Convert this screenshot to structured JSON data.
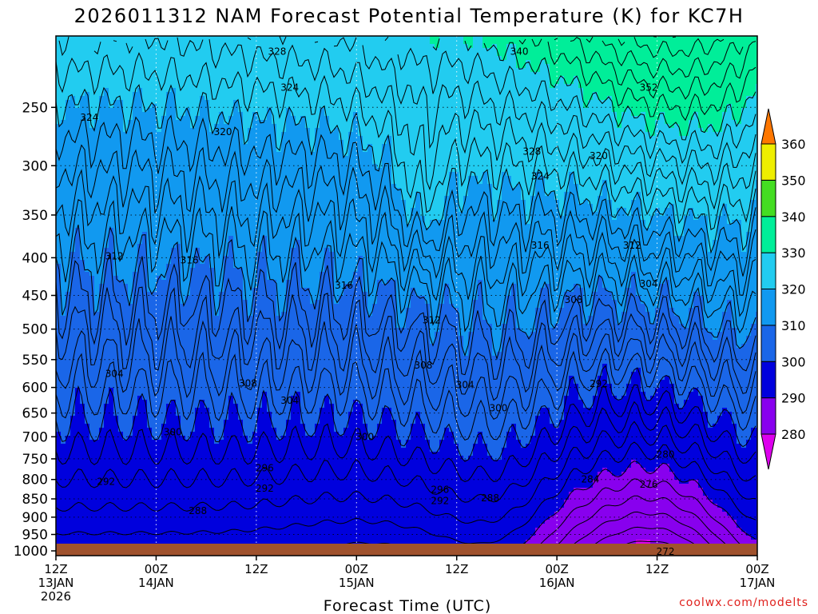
{
  "chart_data": {
    "type": "time-height filled contour",
    "title": "2026011312 NAM Forecast Potential Temperature (K) for KC7H",
    "xlabel": "Forecast Time (UTC)",
    "credit": "coolwx.com/modelts",
    "y_ticks": [
      "250",
      "300",
      "350",
      "400",
      "450",
      "500",
      "550",
      "600",
      "650",
      "700",
      "750",
      "800",
      "850",
      "900",
      "950",
      "1000"
    ],
    "y_values": [
      250,
      300,
      350,
      400,
      450,
      500,
      550,
      600,
      650,
      700,
      750,
      800,
      850,
      900,
      950,
      1000
    ],
    "y_range": [
      200,
      1015
    ],
    "x_ticks": [
      {
        "hour": 0,
        "l1": "12Z",
        "l2": "13JAN",
        "l3": "2026"
      },
      {
        "hour": 12,
        "l1": "00Z",
        "l2": "14JAN",
        "l3": ""
      },
      {
        "hour": 24,
        "l1": "12Z",
        "l2": "",
        "l3": ""
      },
      {
        "hour": 36,
        "l1": "00Z",
        "l2": "15JAN",
        "l3": ""
      },
      {
        "hour": 48,
        "l1": "12Z",
        "l2": "",
        "l3": ""
      },
      {
        "hour": 60,
        "l1": "00Z",
        "l2": "16JAN",
        "l3": ""
      },
      {
        "hour": 72,
        "l1": "12Z",
        "l2": "",
        "l3": ""
      },
      {
        "hour": 84,
        "l1": "00Z",
        "l2": "17JAN",
        "l3": ""
      }
    ],
    "x_range": [
      0,
      84
    ],
    "colorbar": {
      "levels": [
        280,
        290,
        300,
        310,
        320,
        330,
        340,
        350,
        360
      ],
      "labels": [
        "280",
        "290",
        "300",
        "310",
        "320",
        "330",
        "340",
        "350",
        "360"
      ],
      "colors": {
        "lt280": "#dd00ee",
        "280": "#8800ee",
        "290": "#0000dd",
        "300": "#1a66e8",
        "310": "#1199f0",
        "320": "#22ccf0",
        "330": "#00ee99",
        "340": "#44dd22",
        "350": "#eeee00",
        "360": "#ffaa00",
        "gt360": "#ff7700"
      }
    },
    "ground_color": "#a0522d",
    "contour_interval": 2,
    "contour_labels": [
      {
        "text": "328",
        "h": 26.5,
        "p": 210
      },
      {
        "text": "340",
        "h": 55.5,
        "p": 210
      },
      {
        "text": "324",
        "h": 28,
        "p": 235
      },
      {
        "text": "352",
        "h": 71,
        "p": 235
      },
      {
        "text": "324",
        "h": 4,
        "p": 258
      },
      {
        "text": "320",
        "h": 20,
        "p": 270
      },
      {
        "text": "328",
        "h": 57,
        "p": 287
      },
      {
        "text": "320",
        "h": 65,
        "p": 291
      },
      {
        "text": "324",
        "h": 58,
        "p": 310
      },
      {
        "text": "316",
        "h": 58,
        "p": 385
      },
      {
        "text": "312",
        "h": 69,
        "p": 385
      },
      {
        "text": "312",
        "h": 7,
        "p": 398
      },
      {
        "text": "316",
        "h": 16,
        "p": 403
      },
      {
        "text": "316",
        "h": 34.5,
        "p": 436
      },
      {
        "text": "308",
        "h": 62,
        "p": 456
      },
      {
        "text": "304",
        "h": 71,
        "p": 434
      },
      {
        "text": "312",
        "h": 45,
        "p": 486
      },
      {
        "text": "308",
        "h": 44,
        "p": 560
      },
      {
        "text": "304",
        "h": 7,
        "p": 575
      },
      {
        "text": "308",
        "h": 23,
        "p": 592
      },
      {
        "text": "304",
        "h": 49,
        "p": 595
      },
      {
        "text": "292",
        "h": 65,
        "p": 593
      },
      {
        "text": "304",
        "h": 28,
        "p": 625
      },
      {
        "text": "300",
        "h": 53,
        "p": 640
      },
      {
        "text": "300",
        "h": 14,
        "p": 690
      },
      {
        "text": "300",
        "h": 37,
        "p": 700
      },
      {
        "text": "296",
        "h": 25,
        "p": 772
      },
      {
        "text": "280",
        "h": 73,
        "p": 740
      },
      {
        "text": "292",
        "h": 6,
        "p": 806
      },
      {
        "text": "284",
        "h": 64,
        "p": 800
      },
      {
        "text": "292",
        "h": 25,
        "p": 823
      },
      {
        "text": "276",
        "h": 71,
        "p": 813
      },
      {
        "text": "296",
        "h": 46,
        "p": 826
      },
      {
        "text": "288",
        "h": 52,
        "p": 848
      },
      {
        "text": "292",
        "h": 46,
        "p": 855
      },
      {
        "text": "288",
        "h": 17,
        "p": 882
      },
      {
        "text": "272",
        "h": 73,
        "p": 1003
      }
    ]
  }
}
